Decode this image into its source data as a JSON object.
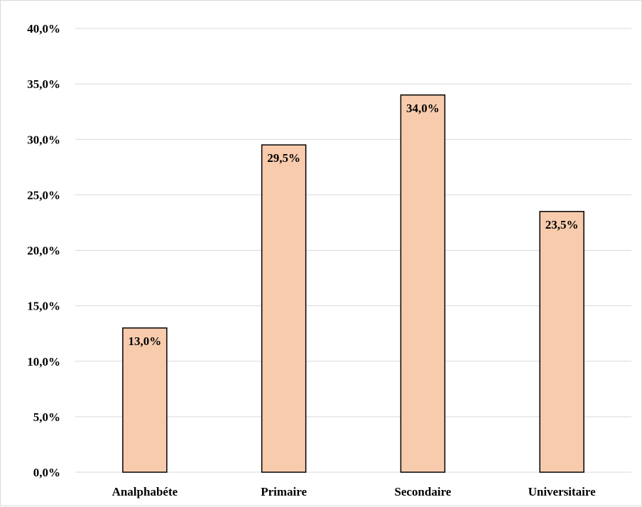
{
  "chart_data": {
    "type": "bar",
    "title": "",
    "xlabel": "",
    "ylabel": "",
    "categories": [
      "Analphabéte",
      "Primaire",
      "Secondaire",
      "Universitaire"
    ],
    "values": [
      13.0,
      29.5,
      34.0,
      23.5
    ],
    "data_labels": [
      "13,0%",
      "29,5%",
      "34,0%",
      "23,5%"
    ],
    "ylim": [
      0,
      40
    ],
    "yticks": [
      0,
      5,
      10,
      15,
      20,
      25,
      30,
      35,
      40
    ],
    "ytick_labels": [
      "0,0%",
      "5,0%",
      "10,0%",
      "15,0%",
      "20,0%",
      "25,0%",
      "30,0%",
      "35,0%",
      "40,0%"
    ],
    "grid": true,
    "legend": "none",
    "bar_color": "#f8cbad",
    "bar_edge_color": "#000000",
    "grid_color": "#d9d9d9"
  }
}
